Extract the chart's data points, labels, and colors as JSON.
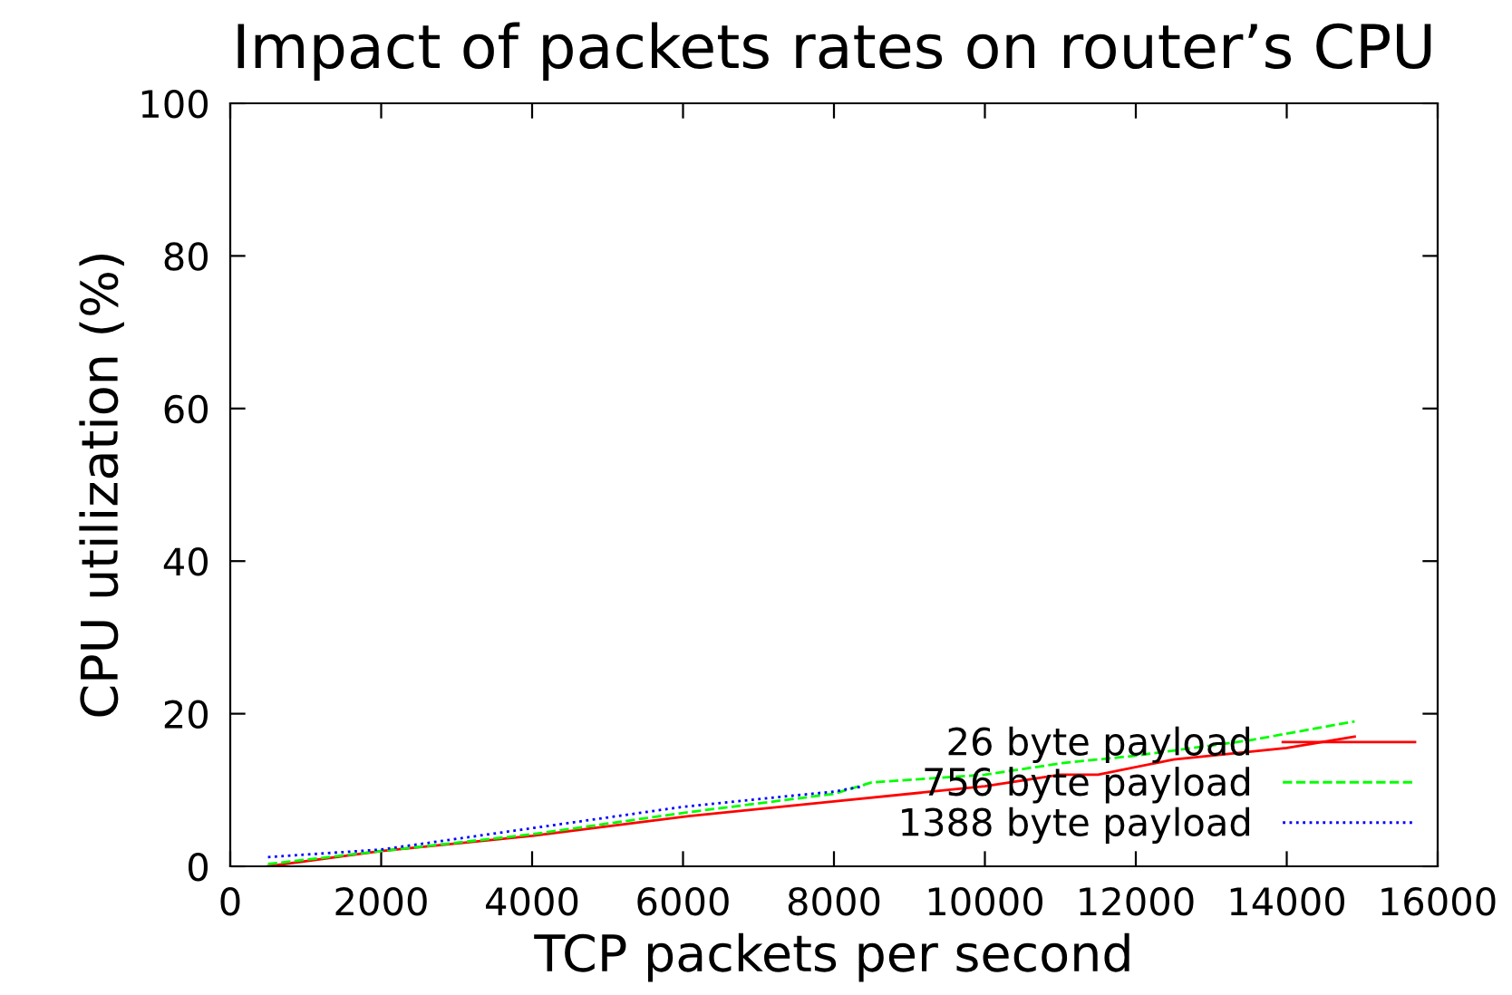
{
  "chart_data": {
    "type": "line",
    "title": "Impact of packets rates on router’s CPU",
    "xlabel": "TCP packets per second",
    "ylabel": "CPU utilization (%)",
    "xlim": [
      0,
      16000
    ],
    "xticks": [
      0,
      2000,
      4000,
      6000,
      8000,
      10000,
      12000,
      14000,
      16000
    ],
    "ylim": [
      0,
      100
    ],
    "yticks": [
      0,
      20,
      40,
      60,
      80,
      100
    ],
    "grid": false,
    "legend": "bottom right",
    "series": [
      {
        "name": "26 byte payload",
        "color": "#ff0000",
        "line_style": "solid",
        "x": [
          500,
          2000,
          4000,
          6000,
          8000,
          10000,
          11000,
          11500,
          12500,
          13500,
          14000,
          14900
        ],
        "values": [
          0,
          2,
          4,
          6.5,
          8.5,
          10.5,
          12,
          12,
          14,
          15,
          15.5,
          17
        ]
      },
      {
        "name": "756 byte payload",
        "color": "#00ff00",
        "line_style": "dashed",
        "x": [
          500,
          2000,
          4000,
          6000,
          8000,
          8500,
          10000,
          11000,
          12000,
          13500,
          14900
        ],
        "values": [
          0.3,
          2,
          4.2,
          7,
          9.5,
          11,
          12,
          13.5,
          14.5,
          16.5,
          19
        ]
      },
      {
        "name": "1388 byte payload",
        "color": "#0000ff",
        "line_style": "dotted",
        "x": [
          500,
          2000,
          4000,
          6000,
          8000,
          8400
        ],
        "values": [
          1.2,
          2.2,
          5,
          7.8,
          9.8,
          10.5
        ]
      }
    ]
  }
}
